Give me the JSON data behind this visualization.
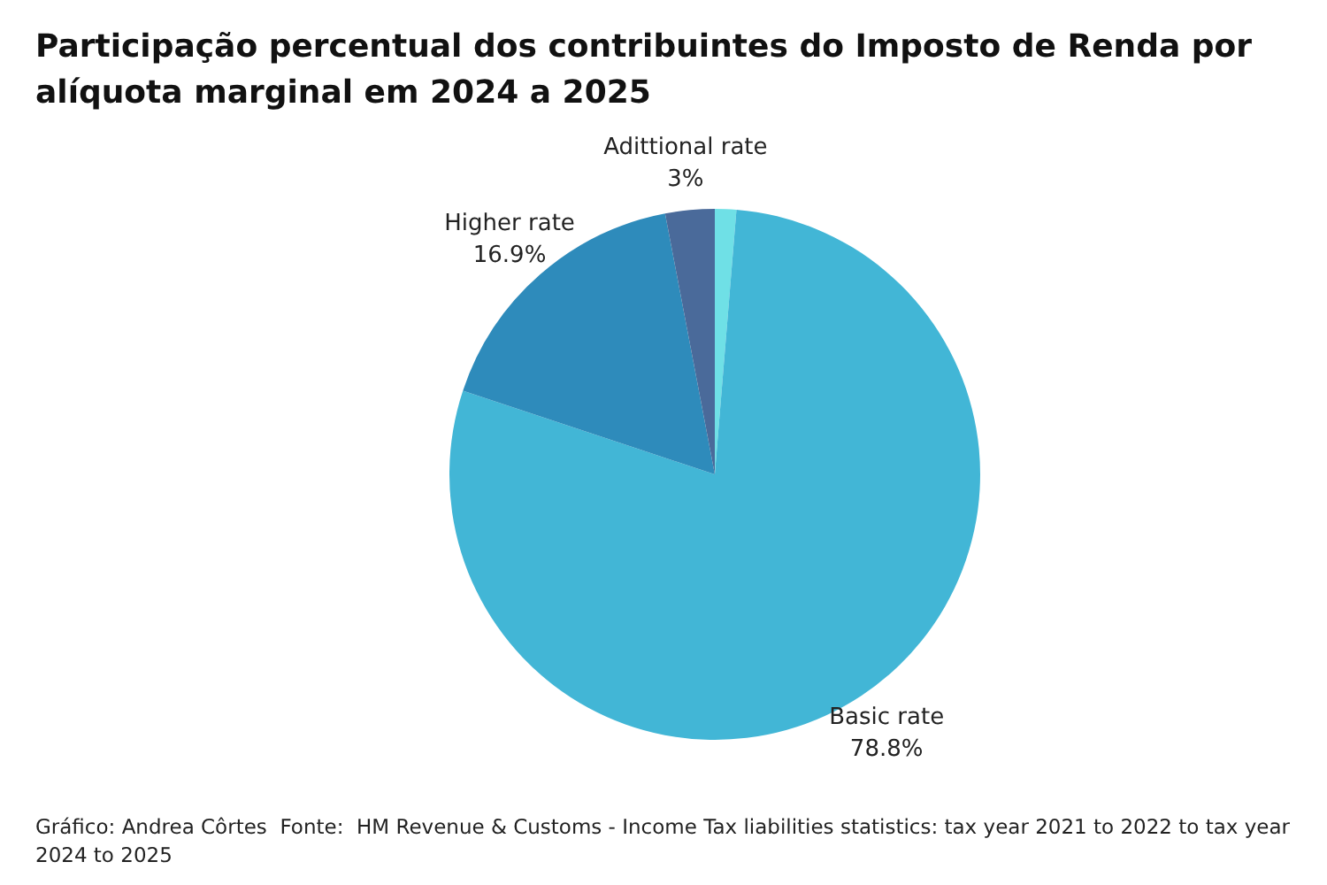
{
  "chart_data": {
    "type": "pie",
    "title": "Participação percentual dos contribuintes do Imposto de Renda por alíquota marginal em 2024 a 2025",
    "categories": [
      null,
      "Basic rate",
      "Higher rate",
      "Adittional rate"
    ],
    "values": [
      1.3,
      78.8,
      16.9,
      3
    ],
    "colors": [
      "#6fe0e6",
      "#42b6d6",
      "#2e8bbb",
      "#4a6a9a"
    ],
    "value_labels": [
      null,
      "78.8%",
      "16.9%",
      "3%"
    ],
    "legend": false,
    "annotations": [
      "Gráfico: Andrea Côrtes  Fonte:  HM Revenue & Customs - Income Tax liabilities statistics: tax year 2021 to 2022 to tax year 2024 to 2025"
    ]
  }
}
